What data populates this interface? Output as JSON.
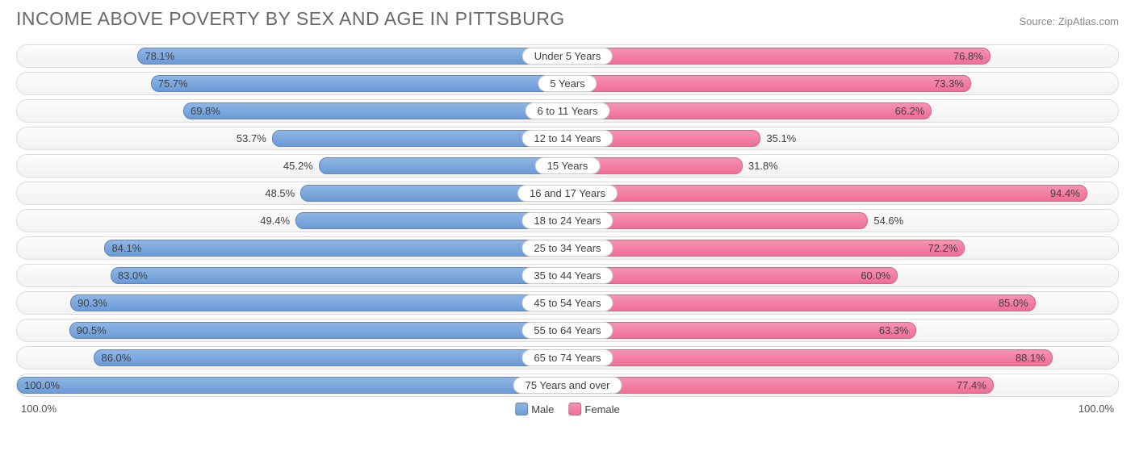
{
  "title": "INCOME ABOVE POVERTY BY SEX AND AGE IN PITTSBURG",
  "source": "Source: ZipAtlas.com",
  "axis_left": "100.0%",
  "axis_right": "100.0%",
  "legend": {
    "male": "Male",
    "female": "Female"
  },
  "colors": {
    "male_top": "#8fb6e4",
    "male_bottom": "#6b9bd6",
    "male_border": "#5a87c0",
    "female_top": "#f593b2",
    "female_bottom": "#ef6e97",
    "female_border": "#d85f86",
    "track_border": "#dcdcdc",
    "bg": "#ffffff",
    "title_color": "#686868",
    "source_color": "#888888"
  },
  "chart": {
    "type": "diverging-bar",
    "max": 100.0,
    "label_inside_threshold": 60,
    "rows": [
      {
        "label": "Under 5 Years",
        "male": 78.1,
        "female": 76.8
      },
      {
        "label": "5 Years",
        "male": 75.7,
        "female": 73.3
      },
      {
        "label": "6 to 11 Years",
        "male": 69.8,
        "female": 66.2
      },
      {
        "label": "12 to 14 Years",
        "male": 53.7,
        "female": 35.1
      },
      {
        "label": "15 Years",
        "male": 45.2,
        "female": 31.8
      },
      {
        "label": "16 and 17 Years",
        "male": 48.5,
        "female": 94.4
      },
      {
        "label": "18 to 24 Years",
        "male": 49.4,
        "female": 54.6
      },
      {
        "label": "25 to 34 Years",
        "male": 84.1,
        "female": 72.2
      },
      {
        "label": "35 to 44 Years",
        "male": 83.0,
        "female": 60.0
      },
      {
        "label": "45 to 54 Years",
        "male": 90.3,
        "female": 85.0
      },
      {
        "label": "55 to 64 Years",
        "male": 90.5,
        "female": 63.3
      },
      {
        "label": "65 to 74 Years",
        "male": 86.0,
        "female": 88.1
      },
      {
        "label": "75 Years and over",
        "male": 100.0,
        "female": 77.4
      }
    ]
  }
}
